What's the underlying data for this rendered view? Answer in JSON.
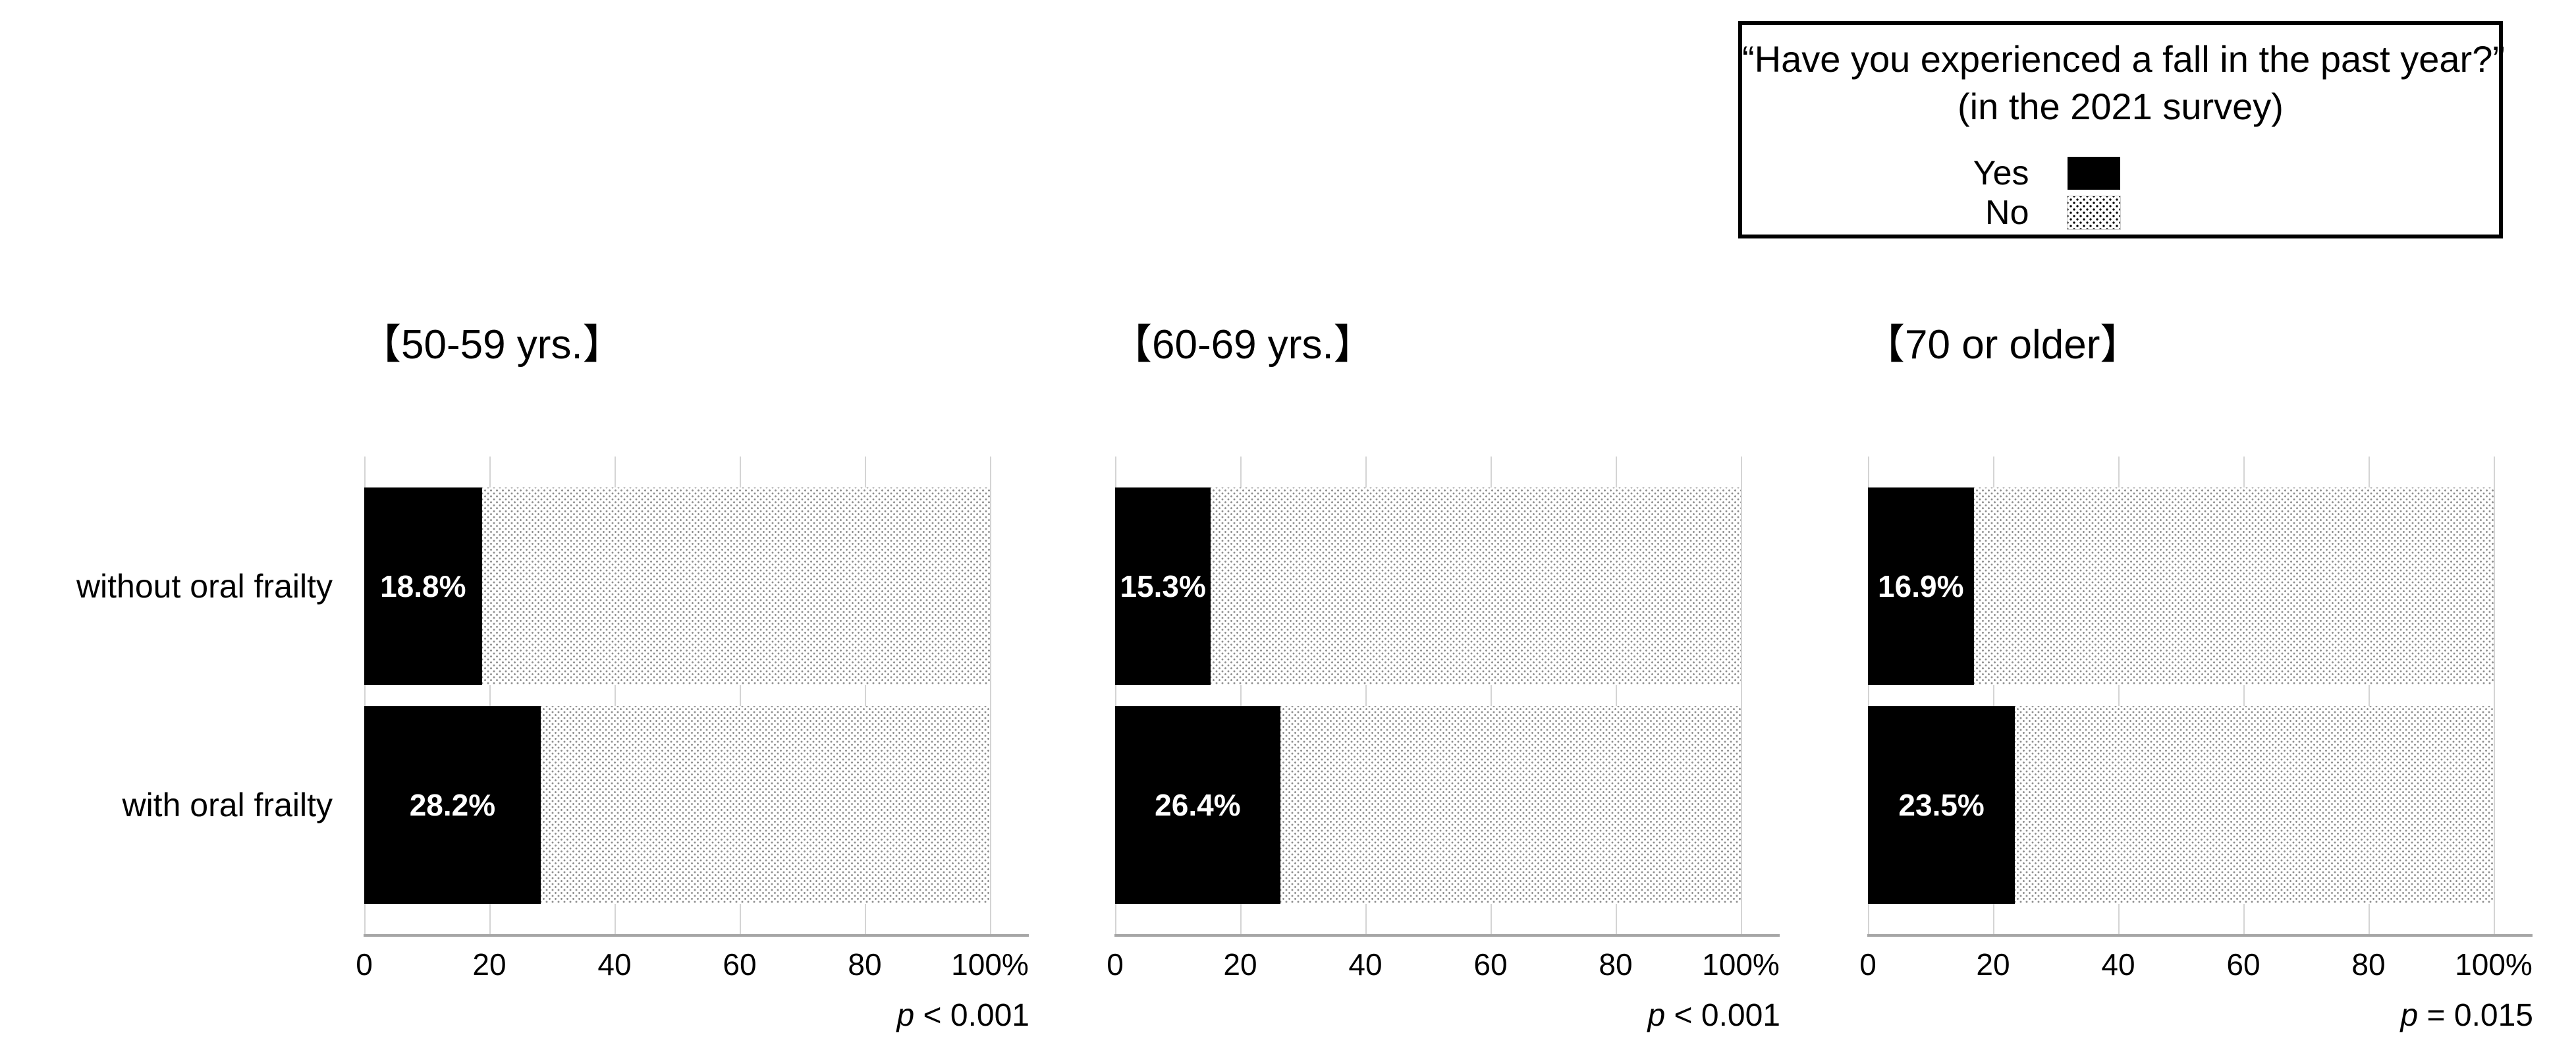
{
  "figure": {
    "background": "#ffffff",
    "colors": {
      "yes_fill": "#000000",
      "no_pattern_dot": "#8f8f8f",
      "gridline": "#d4d4d4",
      "axis_line": "#a6a6a6",
      "bar_value_text": "#ffffff",
      "text": "#000000"
    }
  },
  "legend": {
    "title_line1": "“Have you experienced a fall in the past year?”",
    "title_line2": "(in the 2021 survey)",
    "items": [
      {
        "label": "Yes",
        "swatch": "solid-black"
      },
      {
        "label": "No",
        "swatch": "dotted-pattern"
      }
    ]
  },
  "row_labels": [
    "without oral frailty",
    "with oral frailty"
  ],
  "chart_data": [
    {
      "type": "bar",
      "orientation": "horizontal",
      "stacked": true,
      "title": "【50-59 yrs.】",
      "categories": [
        "without oral frailty",
        "with oral frailty"
      ],
      "series": [
        {
          "name": "Yes",
          "values": [
            18.8,
            28.2
          ],
          "labels": [
            "18.8%",
            "28.2%"
          ],
          "fill": "solid-black"
        },
        {
          "name": "No",
          "values": [
            81.2,
            71.8
          ],
          "fill": "dotted-pattern"
        }
      ],
      "xlim": [
        0,
        100
      ],
      "x_ticks": [
        "0",
        "20",
        "40",
        "60",
        "80",
        "100%"
      ],
      "grid": true,
      "legend_position": "top-right-shared",
      "annotation": {
        "p_symbol": "p",
        "p_text": " < 0.001"
      }
    },
    {
      "type": "bar",
      "orientation": "horizontal",
      "stacked": true,
      "title": "【60-69 yrs.】",
      "categories": [
        "without oral frailty",
        "with oral frailty"
      ],
      "series": [
        {
          "name": "Yes",
          "values": [
            15.3,
            26.4
          ],
          "labels": [
            "15.3%",
            "26.4%"
          ],
          "fill": "solid-black"
        },
        {
          "name": "No",
          "values": [
            84.7,
            73.6
          ],
          "fill": "dotted-pattern"
        }
      ],
      "xlim": [
        0,
        100
      ],
      "x_ticks": [
        "0",
        "20",
        "40",
        "60",
        "80",
        "100%"
      ],
      "grid": true,
      "legend_position": "top-right-shared",
      "annotation": {
        "p_symbol": "p",
        "p_text": " < 0.001"
      }
    },
    {
      "type": "bar",
      "orientation": "horizontal",
      "stacked": true,
      "title": "【70 or older】",
      "categories": [
        "without oral frailty",
        "with oral frailty"
      ],
      "series": [
        {
          "name": "Yes",
          "values": [
            16.9,
            23.5
          ],
          "labels": [
            "16.9%",
            "23.5%"
          ],
          "fill": "solid-black"
        },
        {
          "name": "No",
          "values": [
            83.1,
            76.5
          ],
          "fill": "dotted-pattern"
        }
      ],
      "xlim": [
        0,
        100
      ],
      "x_ticks": [
        "0",
        "20",
        "40",
        "60",
        "80",
        "100%"
      ],
      "grid": true,
      "legend_position": "top-right-shared",
      "annotation": {
        "p_symbol": "p",
        "p_text": " = 0.015"
      }
    }
  ]
}
